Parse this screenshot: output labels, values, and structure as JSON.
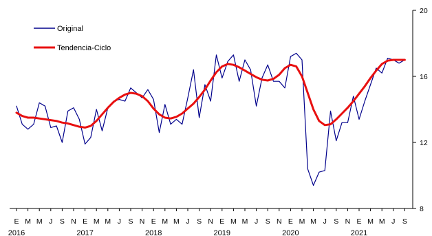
{
  "chart_data": {
    "type": "line",
    "title": "",
    "xlabel": "",
    "ylabel": "",
    "ylim": [
      8,
      20
    ],
    "yticks": [
      8,
      12,
      16,
      20
    ],
    "y_axis_position": "right",
    "grid": false,
    "legend_position": "top-left",
    "month_labels": [
      "E",
      "M",
      "M",
      "J",
      "S",
      "N",
      "E",
      "M",
      "M",
      "J",
      "S",
      "N",
      "E",
      "M",
      "M",
      "J",
      "S",
      "N",
      "E",
      "M",
      "M",
      "J",
      "S",
      "N",
      "E",
      "M",
      "M",
      "J",
      "S",
      "N",
      "E",
      "M",
      "M",
      "J",
      "S"
    ],
    "year_labels": [
      {
        "label": "2016",
        "month_index": 0
      },
      {
        "label": "2017",
        "month_index": 12
      },
      {
        "label": "2018",
        "month_index": 24
      },
      {
        "label": "2019",
        "month_index": 36
      },
      {
        "label": "2020",
        "month_index": 48
      },
      {
        "label": "2021",
        "month_index": 60
      }
    ],
    "series": [
      {
        "name": "Original",
        "color": "#00008b",
        "values": [
          14.2,
          13.1,
          12.8,
          13.1,
          14.4,
          14.2,
          12.9,
          13.0,
          12.0,
          13.9,
          14.1,
          13.4,
          11.9,
          12.3,
          14.0,
          12.7,
          14.1,
          14.5,
          14.6,
          14.5,
          15.3,
          15.0,
          14.7,
          15.2,
          14.6,
          12.6,
          14.3,
          13.1,
          13.4,
          13.1,
          14.7,
          16.4,
          13.5,
          15.5,
          14.5,
          17.3,
          15.9,
          16.9,
          17.3,
          15.7,
          17.0,
          16.4,
          14.2,
          15.9,
          16.7,
          15.7,
          15.7,
          15.3,
          17.2,
          17.4,
          17.0,
          10.4,
          9.4,
          10.2,
          10.3,
          13.9,
          12.1,
          13.2,
          13.2,
          14.8,
          13.4,
          14.5,
          15.5,
          16.5,
          16.2,
          17.1,
          17.0,
          16.8,
          17.0
        ]
      },
      {
        "name": "Tendencia-Ciclo",
        "color": "#e81010",
        "values": [
          13.8,
          13.6,
          13.5,
          13.5,
          13.45,
          13.4,
          13.35,
          13.3,
          13.2,
          13.15,
          13.05,
          12.95,
          12.9,
          13.0,
          13.3,
          13.7,
          14.1,
          14.45,
          14.7,
          14.9,
          15.0,
          14.95,
          14.8,
          14.5,
          14.05,
          13.7,
          13.5,
          13.45,
          13.55,
          13.75,
          14.05,
          14.35,
          14.75,
          15.2,
          15.75,
          16.25,
          16.6,
          16.75,
          16.7,
          16.55,
          16.35,
          16.15,
          15.95,
          15.8,
          15.75,
          15.85,
          16.1,
          16.5,
          16.7,
          16.6,
          16.0,
          15.0,
          14.0,
          13.3,
          13.05,
          13.1,
          13.4,
          13.75,
          14.1,
          14.5,
          14.95,
          15.4,
          15.9,
          16.35,
          16.75,
          16.95,
          17.0,
          17.0,
          17.0
        ]
      }
    ]
  }
}
